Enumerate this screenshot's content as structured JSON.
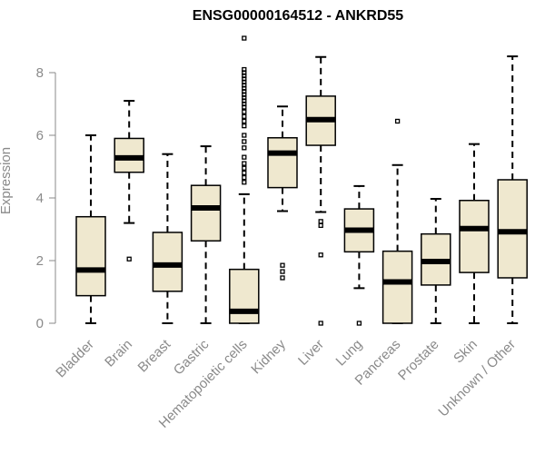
{
  "chart_data": {
    "type": "boxplot",
    "title": "ENSG00000164512 - ANKRD55",
    "ylabel": "Expression",
    "xlabel": "",
    "ylim": [
      0,
      9.2
    ],
    "yticks": [
      0,
      2,
      4,
      6,
      8
    ],
    "box_fill": "#efe8cf",
    "categories": [
      "Bladder",
      "Brain",
      "Breast",
      "Gastric",
      "Hematopoietic cells",
      "Kidney",
      "Liver",
      "Lung",
      "Pancreas",
      "Prostate",
      "Skin",
      "Unknown / Other"
    ],
    "boxes": [
      {
        "min": 0.0,
        "q1": 0.88,
        "median": 1.7,
        "q3": 3.4,
        "max": 6.0,
        "outliers": []
      },
      {
        "min": 3.2,
        "q1": 4.82,
        "median": 5.28,
        "q3": 5.9,
        "max": 7.1,
        "outliers": [
          2.05
        ]
      },
      {
        "min": 0.0,
        "q1": 1.02,
        "median": 1.86,
        "q3": 2.9,
        "max": 5.4,
        "outliers": []
      },
      {
        "min": 0.0,
        "q1": 2.63,
        "median": 3.68,
        "q3": 4.4,
        "max": 5.65,
        "outliers": []
      },
      {
        "min": 0.0,
        "q1": 0.0,
        "median": 0.38,
        "q3": 1.72,
        "max": 4.12,
        "outliers": [
          4.5,
          4.65,
          4.8,
          4.95,
          5.1,
          5.3,
          5.6,
          5.8,
          6.0,
          6.3,
          6.45,
          6.6,
          6.75,
          6.9,
          7.0,
          7.1,
          7.2,
          7.3,
          7.4,
          7.5,
          7.6,
          7.7,
          7.8,
          7.9,
          8.0,
          8.1,
          9.1
        ]
      },
      {
        "min": 3.58,
        "q1": 4.33,
        "median": 5.43,
        "q3": 5.92,
        "max": 6.92,
        "outliers": [
          1.45,
          1.65,
          1.85
        ]
      },
      {
        "min": 3.55,
        "q1": 5.68,
        "median": 6.5,
        "q3": 7.25,
        "max": 8.5,
        "outliers": [
          0.0,
          2.18,
          3.12,
          3.25
        ]
      },
      {
        "min": 1.12,
        "q1": 2.28,
        "median": 2.97,
        "q3": 3.65,
        "max": 4.38,
        "outliers": [
          0.0
        ]
      },
      {
        "min": 0.0,
        "q1": 0.0,
        "median": 1.32,
        "q3": 2.3,
        "max": 5.05,
        "outliers": [
          6.45
        ]
      },
      {
        "min": 0.0,
        "q1": 1.22,
        "median": 1.97,
        "q3": 2.85,
        "max": 3.97,
        "outliers": []
      },
      {
        "min": 0.0,
        "q1": 1.62,
        "median": 3.02,
        "q3": 3.92,
        "max": 5.72,
        "outliers": []
      },
      {
        "min": 0.0,
        "q1": 1.45,
        "median": 2.92,
        "q3": 4.58,
        "max": 8.52,
        "outliers": []
      }
    ]
  }
}
